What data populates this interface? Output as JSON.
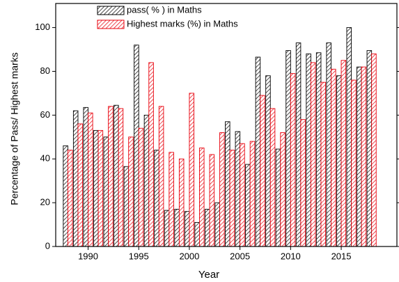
{
  "chart_data": {
    "type": "bar",
    "x_label": "Year",
    "y_label": "Percentage of Pass/ Highest marks",
    "x": [
      1988,
      1989,
      1990,
      1991,
      1992,
      1993,
      1994,
      1995,
      1996,
      1997,
      1998,
      1999,
      2000,
      2001,
      2002,
      2003,
      2004,
      2005,
      2006,
      2007,
      2008,
      2009,
      2010,
      2011,
      2012,
      2013,
      2014,
      2015,
      2016,
      2017,
      2018
    ],
    "series": [
      {
        "name": "pass( % ) in Maths",
        "color": "#000000",
        "values": [
          46,
          62,
          63.5,
          53,
          50,
          64.5,
          36.5,
          92,
          60,
          44,
          16.5,
          17,
          16,
          11,
          17,
          20,
          57,
          52.5,
          37.5,
          86.5,
          78,
          44.5,
          89.5,
          93,
          88,
          88.5,
          93,
          78,
          100,
          82,
          89.5
        ]
      },
      {
        "name": "Highest marks (%) in Maths",
        "color": "#e8000b",
        "values": [
          44,
          56,
          61,
          53,
          64,
          63,
          50,
          54,
          84,
          64,
          43,
          40,
          70,
          45,
          42,
          52,
          44,
          47,
          48,
          69,
          63,
          52,
          79,
          58,
          84,
          75,
          81,
          85,
          76,
          82,
          88
        ]
      }
    ],
    "xlim": [
      1986.8,
      2020.5
    ],
    "xticks": [
      1990,
      1995,
      2000,
      2005,
      2010,
      2015
    ],
    "ylim": [
      0,
      111
    ],
    "yticks": [
      0,
      20,
      40,
      60,
      80,
      100
    ],
    "legend": "top-left"
  }
}
